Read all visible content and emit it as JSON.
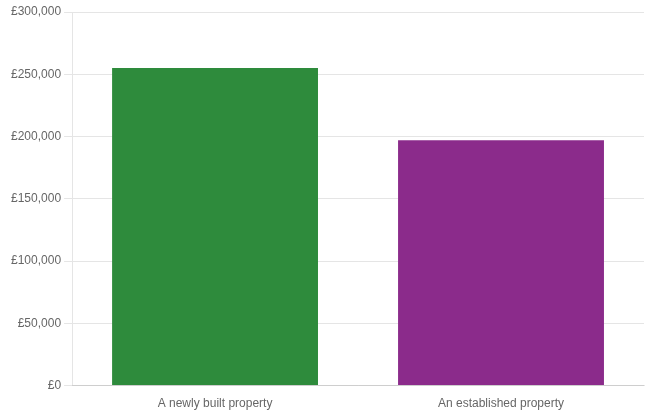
{
  "chart_data": {
    "type": "bar",
    "categories": [
      "A newly built property",
      "An established property"
    ],
    "values": [
      255000,
      197000
    ],
    "colors": [
      "#2e8b3c",
      "#8b2b8b"
    ],
    "ylim": [
      0,
      300000
    ],
    "yticks": [
      {
        "value": 0,
        "label": "£0"
      },
      {
        "value": 50000,
        "label": "£50,000"
      },
      {
        "value": 100000,
        "label": "£100,000"
      },
      {
        "value": 150000,
        "label": "£150,000"
      },
      {
        "value": 200000,
        "label": "£200,000"
      },
      {
        "value": 250000,
        "label": "£250,000"
      },
      {
        "value": 300000,
        "label": "£300,000"
      }
    ],
    "grid": true
  }
}
